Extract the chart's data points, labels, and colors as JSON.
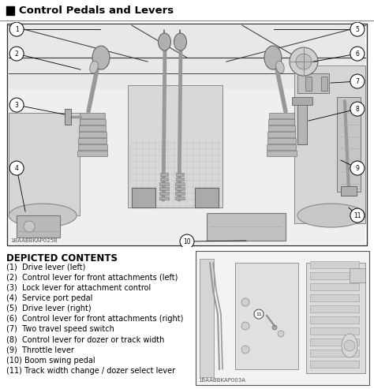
{
  "title": "Control Pedals and Levers",
  "bg_color": "#ffffff",
  "depicted_contents_title": "DEPICTED CONTENTS",
  "items": [
    "(1)  Drive lever (left)",
    "(2)  Control lever for front attachments (left)",
    "(3)  Lock lever for attachment control",
    "(4)  Service port pedal",
    "(5)  Drive lever (right)",
    "(6)  Control lever for front attachments (right)",
    "(7)  Two travel speed switch",
    "(8)  Control lever for dozer or track width",
    "(9)  Throttle lever",
    "(10) Boom swing pedal",
    "(11) Track width change / dozer select lever"
  ],
  "label1_code": "1BAABBKAP025B",
  "label2_code": "1BAABBKAP003A",
  "figsize": [
    4.74,
    4.93
  ],
  "dpi": 100,
  "main_diagram": {
    "bg": "#f5f5f5",
    "border": "#333333",
    "line_color": "#444444",
    "gray_light": "#cccccc",
    "gray_mid": "#aaaaaa",
    "gray_dark": "#888888"
  }
}
